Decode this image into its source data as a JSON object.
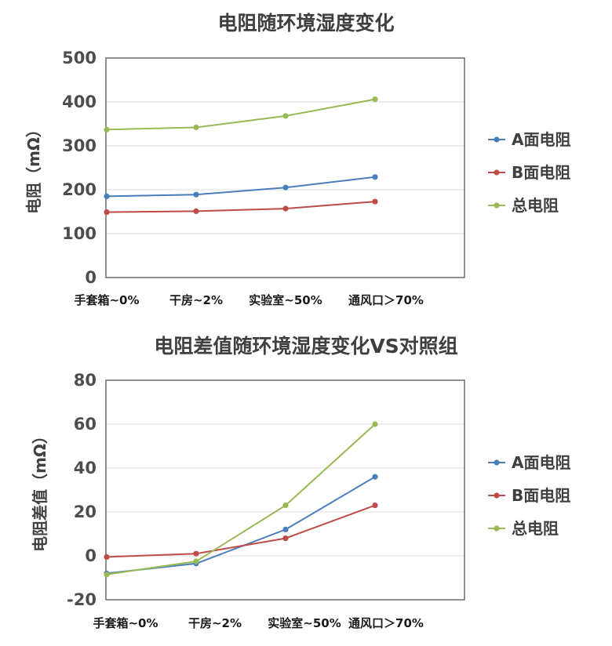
{
  "chart_data": [
    {
      "type": "line",
      "title": "电阻随环境湿度变化",
      "xlabel": "",
      "ylabel": "电阻（mΩ）",
      "categories": [
        "手套箱~0%",
        "干房~2%",
        "实验室~50%",
        "通风口＞70%"
      ],
      "ylim": [
        0,
        500
      ],
      "yticks": [
        0,
        100,
        200,
        300,
        400,
        500
      ],
      "grid": true,
      "legend": "right",
      "series": [
        {
          "name": "A面电阻",
          "color": "#4a7ebb",
          "values": [
            185,
            189,
            205,
            229
          ]
        },
        {
          "name": "B面电阻",
          "color": "#be4b48",
          "values": [
            149,
            151,
            157,
            173
          ]
        },
        {
          "name": "总电阻",
          "color": "#98b954",
          "values": [
            337,
            342,
            368,
            406
          ]
        }
      ]
    },
    {
      "type": "line",
      "title": "电阻差值随环境湿度变化VS对照组",
      "xlabel": "",
      "ylabel": "电阻差值（mΩ）",
      "categories": [
        "手套箱~0%",
        "干房~2%",
        "实验室~50%",
        "通风口＞70%"
      ],
      "ylim": [
        -20,
        80
      ],
      "yticks": [
        -20,
        0,
        20,
        40,
        60,
        80
      ],
      "grid": true,
      "legend": "right",
      "series": [
        {
          "name": "A面电阻",
          "color": "#4a7ebb",
          "values": [
            -8,
            -3.5,
            12,
            36
          ]
        },
        {
          "name": "B面电阻",
          "color": "#be4b48",
          "values": [
            -0.5,
            1,
            8,
            23
          ]
        },
        {
          "name": "总电阻",
          "color": "#98b954",
          "values": [
            -8.5,
            -2.5,
            23,
            60
          ]
        }
      ]
    }
  ]
}
